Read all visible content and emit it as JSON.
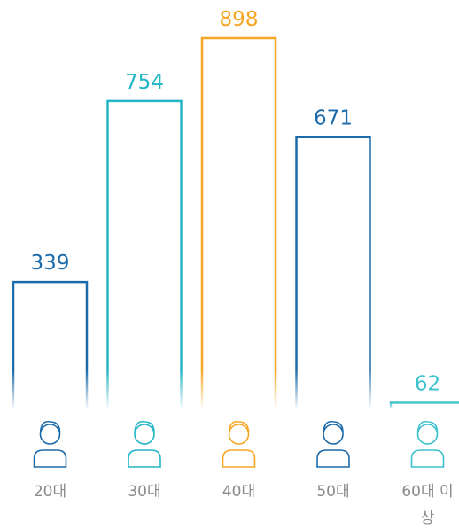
{
  "chart_data": {
    "type": "bar",
    "categories": [
      "20대",
      "30대",
      "40대",
      "50대",
      "60대 이상"
    ],
    "values": [
      339,
      754,
      898,
      671,
      62
    ],
    "colors": [
      "#1b6aa9",
      "#22b5c6",
      "#f5a623",
      "#1b6aa9",
      "#3cc2cc"
    ]
  }
}
